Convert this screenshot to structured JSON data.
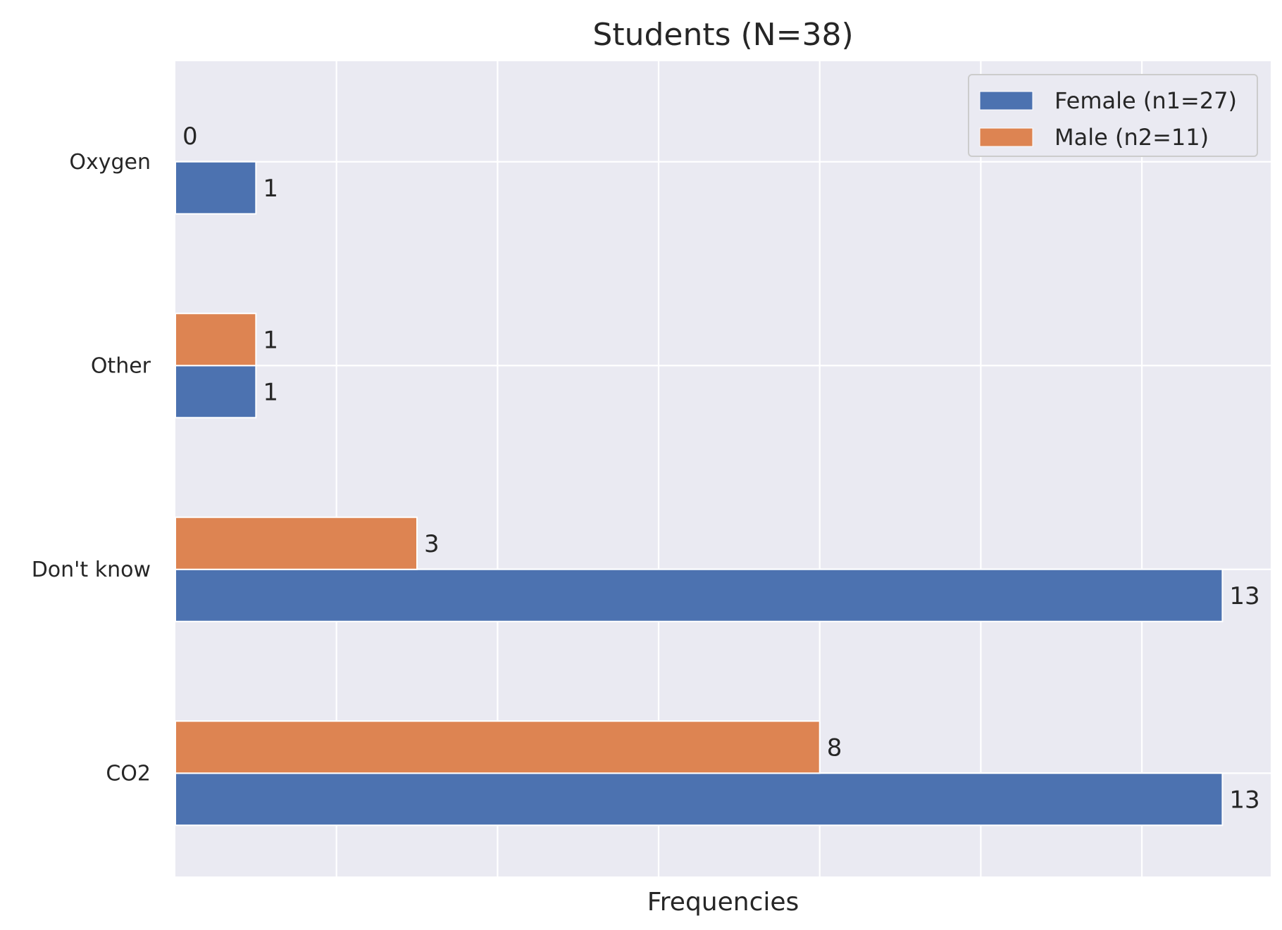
{
  "chart_data": {
    "type": "bar",
    "orientation": "horizontal",
    "title": "Students (N=38)",
    "xlabel": "Frequencies",
    "ylabel": "",
    "categories": [
      "Oxygen",
      "Other",
      "Don't know",
      "CO2"
    ],
    "series": [
      {
        "name": "Female (n1=27)",
        "values": [
          1,
          1,
          13,
          13
        ],
        "color": "#4c72b0"
      },
      {
        "name": "Male (n2=11)",
        "values": [
          0,
          1,
          3,
          8
        ],
        "color": "#dd8452"
      }
    ],
    "xlim": [
      0,
      13.6
    ],
    "x_gridlines": [
      2,
      4,
      6,
      8,
      10,
      12
    ],
    "x_tick_labels_shown": false,
    "grid": true,
    "legend_position": "top-right",
    "background_color": "#eaeaf2",
    "grid_color": "#ffffff"
  }
}
